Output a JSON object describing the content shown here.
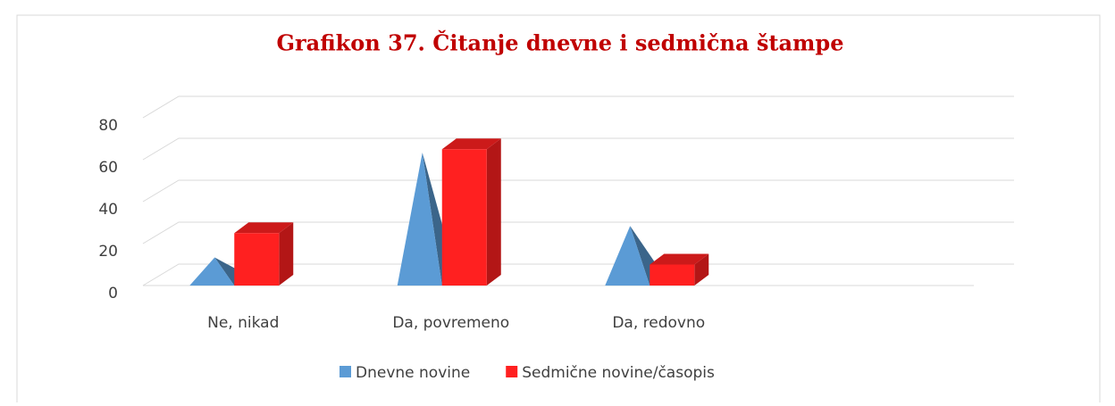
{
  "chart_data": {
    "type": "bar3d",
    "title": "Grafikon 37. Čitanje dnevne i sedmična štampe",
    "categories": [
      "Ne, nikad",
      "Da, povremeno",
      "Da, redovno",
      null
    ],
    "series": [
      {
        "name": "Dnevne novine",
        "color": "#5b9bd5",
        "shape": "pyramid",
        "values": [
          10,
          60,
          25,
          null
        ]
      },
      {
        "name": "Sedmične novine/časopis",
        "color": "#ff2020",
        "shape": "box",
        "values": [
          25,
          65,
          10,
          null
        ]
      }
    ],
    "ylim": [
      0,
      80
    ],
    "yticks": [
      0,
      20,
      40,
      60,
      80
    ],
    "grid": true,
    "legend": "bottom"
  }
}
